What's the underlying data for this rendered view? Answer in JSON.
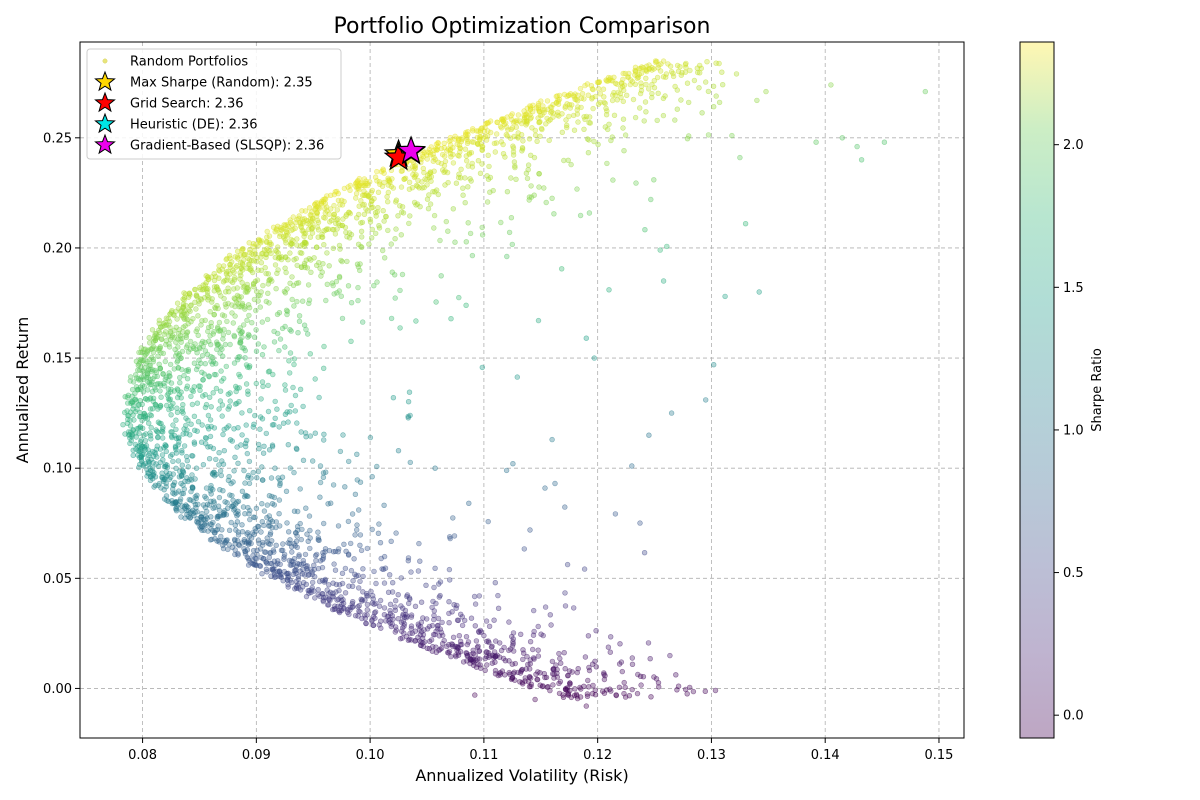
{
  "chart_data": {
    "type": "scatter",
    "title": "Portfolio Optimization Comparison",
    "xlabel": "Annualized Volatility (Risk)",
    "ylabel": "Annualized Return",
    "xlim": [
      0.0745,
      0.1522
    ],
    "ylim": [
      -0.0225,
      0.2935
    ],
    "xticks": [
      "0.08",
      "0.09",
      "0.10",
      "0.11",
      "0.12",
      "0.13",
      "0.14",
      "0.15"
    ],
    "yticks": [
      "0.00",
      "0.05",
      "0.10",
      "0.15",
      "0.20",
      "0.25"
    ],
    "grid": true,
    "legend_position": "upper-left",
    "colorbar": {
      "label": "Sharpe Ratio",
      "range": [
        -0.08,
        2.36
      ],
      "ticks": [
        "0.0",
        "0.5",
        "1.0",
        "1.5",
        "2.0"
      ],
      "colormap": "viridis"
    },
    "scatter_series": {
      "name": "Random Portfolios",
      "description": "Random portfolios, color encodes Sharpe ratio",
      "frontier_vertex": [
        0.0782,
        0.125
      ],
      "frontier_top_anchor": [
        0.104,
        0.244
      ],
      "frontier_bottom_anchor": [
        0.119,
        -0.008
      ],
      "outliers": [
        [
          0.1488,
          0.271
        ],
        [
          0.1452,
          0.248
        ],
        [
          0.1432,
          0.24
        ],
        [
          0.1428,
          0.246
        ],
        [
          0.1415,
          0.25
        ],
        [
          0.1405,
          0.274
        ],
        [
          0.1392,
          0.248
        ],
        [
          0.1348,
          0.271
        ],
        [
          0.134,
          0.267
        ],
        [
          0.1322,
          0.279
        ],
        [
          0.1318,
          0.251
        ],
        [
          0.1325,
          0.241
        ],
        [
          0.133,
          0.211
        ],
        [
          0.1342,
          0.18
        ],
        [
          0.1312,
          0.178
        ],
        [
          0.1302,
          0.147
        ],
        [
          0.1295,
          0.131
        ],
        [
          0.1265,
          0.28
        ],
        [
          0.1285,
          0.276
        ],
        [
          0.127,
          0.263
        ],
        [
          0.1255,
          0.199
        ],
        [
          0.1258,
          0.185
        ],
        [
          0.1265,
          0.125
        ],
        [
          0.1245,
          0.115
        ],
        [
          0.123,
          0.101
        ],
        [
          0.121,
          0.181
        ],
        [
          0.119,
          0.159
        ],
        [
          0.116,
          0.113
        ],
        [
          0.112,
          0.099
        ],
        [
          0.111,
          0.048
        ],
        [
          0.11,
          0.024
        ],
        [
          0.1092,
          -0.003
        ],
        [
          0.1145,
          -0.005
        ],
        [
          0.1158,
          -0.001
        ],
        [
          0.117,
          -0.004
        ],
        [
          0.119,
          -0.008
        ],
        [
          0.1155,
          0.005
        ],
        [
          0.114,
          0.005
        ],
        [
          0.1135,
          0.016
        ],
        [
          0.1125,
          0.011
        ]
      ]
    },
    "markers": [
      {
        "name": "Max Sharpe (Random)",
        "sharpe": "2.35",
        "x": 0.1025,
        "y": 0.2425,
        "color": "#ffd700"
      },
      {
        "name": "Grid Search",
        "sharpe": "2.36",
        "x": 0.1025,
        "y": 0.241,
        "color": "#ff0000"
      },
      {
        "name": "Heuristic (DE)",
        "sharpe": "2.36",
        "x": 0.1036,
        "y": 0.2437,
        "color": "#00e5e5"
      },
      {
        "name": "Gradient-Based (SLSQP)",
        "sharpe": "2.36",
        "x": 0.1036,
        "y": 0.244,
        "color": "#ee00ee"
      }
    ],
    "legend": [
      {
        "label": "Random Portfolios",
        "symbol": "dot",
        "color": "#e8e57a"
      },
      {
        "label": "Max Sharpe (Random): 2.35",
        "symbol": "star",
        "color": "#ffd700"
      },
      {
        "label": "Grid Search: 2.36",
        "symbol": "star",
        "color": "#ff0000"
      },
      {
        "label": "Heuristic (DE): 2.36",
        "symbol": "star",
        "color": "#00e5e5"
      },
      {
        "label": "Gradient-Based (SLSQP): 2.36",
        "symbol": "star",
        "color": "#ee00ee"
      }
    ]
  }
}
